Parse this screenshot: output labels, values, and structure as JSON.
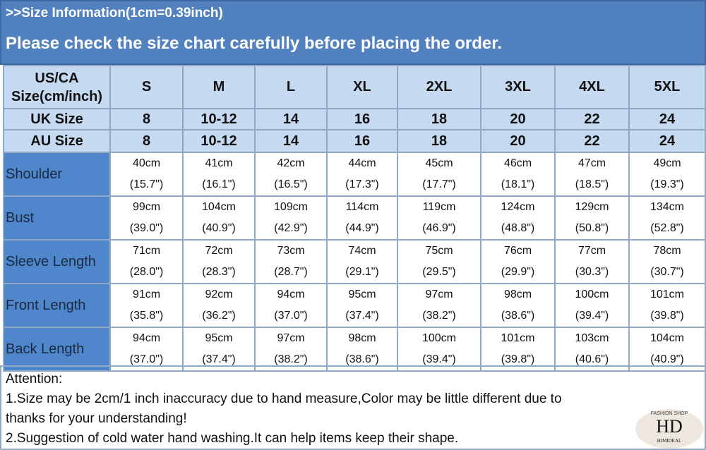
{
  "banner": {
    "subtitle": ">>Size Information(1cm=0.39inch)",
    "title": "Please check the size chart carefully before placing the order."
  },
  "table": {
    "header_label": "US/CA Size(cm/inch)",
    "sizes": [
      "S",
      "M",
      "L",
      "XL",
      "2XL",
      "3XL",
      "4XL",
      "5XL"
    ],
    "uk": {
      "label": "UK Size",
      "values": [
        "8",
        "10-12",
        "14",
        "16",
        "18",
        "20",
        "22",
        "24"
      ]
    },
    "au": {
      "label": "AU Size",
      "values": [
        "8",
        "10-12",
        "14",
        "16",
        "18",
        "20",
        "22",
        "24"
      ]
    },
    "rows": [
      {
        "label": "Shoulder",
        "cm": [
          "40cm",
          "41cm",
          "42cm",
          "44cm",
          "45cm",
          "46cm",
          "47cm",
          "49cm"
        ],
        "inch": [
          "(15.7\")",
          "(16.1\")",
          "(16.5\")",
          "(17.3\")",
          "(17.7\")",
          "(18.1\")",
          "(18.5\")",
          "(19.3\")"
        ]
      },
      {
        "label": "Bust",
        "cm": [
          "99cm",
          "104cm",
          "109cm",
          "114cm",
          "119cm",
          "124cm",
          "129cm",
          "134cm"
        ],
        "inch": [
          "(39.0\")",
          "(40.9\")",
          "(42.9\")",
          "(44.9\")",
          "(46.9\")",
          "(48.8\")",
          "(50.8\")",
          "(52.8\")"
        ]
      },
      {
        "label": "Sleeve Length",
        "cm": [
          "71cm",
          "72cm",
          "73cm",
          "74cm",
          "75cm",
          "76cm",
          "77cm",
          "78cm"
        ],
        "inch": [
          "(28.0\")",
          "(28.3\")",
          "(28.7\")",
          "(29.1\")",
          "(29.5\")",
          "(29.9\")",
          "(30.3\")",
          "(30.7\")"
        ]
      },
      {
        "label": "Front Length",
        "cm": [
          "91cm",
          "92cm",
          "94cm",
          "95cm",
          "97cm",
          "98cm",
          "100cm",
          "101cm"
        ],
        "inch": [
          "(35.8\")",
          "(36.2\")",
          "(37.0\")",
          "(37.4\")",
          "(38.2\")",
          "(38.6\")",
          "(39.4\")",
          "(39.8\")"
        ]
      },
      {
        "label": "Back Length",
        "cm": [
          "94cm",
          "95cm",
          "97cm",
          "98cm",
          "100cm",
          "101cm",
          "103cm",
          "104cm"
        ],
        "inch": [
          "(37.0\")",
          "(37.4\")",
          "(38.2\")",
          "(38.6\")",
          "(39.4\")",
          "(39.8\")",
          "(40.6\")",
          "(40.9\")"
        ]
      }
    ]
  },
  "attention": {
    "heading": "Attention:",
    "line1": "1.Size may be 2cm/1 inch inaccuracy due to hand measure,Color may be little different due to",
    "line2": "thanks for your understanding!",
    "line3": "2.Suggestion of cold water hand washing.It can help items keep their shape."
  },
  "logo": {
    "monogram": "HD",
    "tagline": "FASHION SHOP",
    "name": "HIMIDEAL"
  },
  "colors": {
    "banner": "#5181bf",
    "header_cell": "#c5daf1",
    "row_label": "#4f86cc",
    "border": "#8fa9c6"
  }
}
